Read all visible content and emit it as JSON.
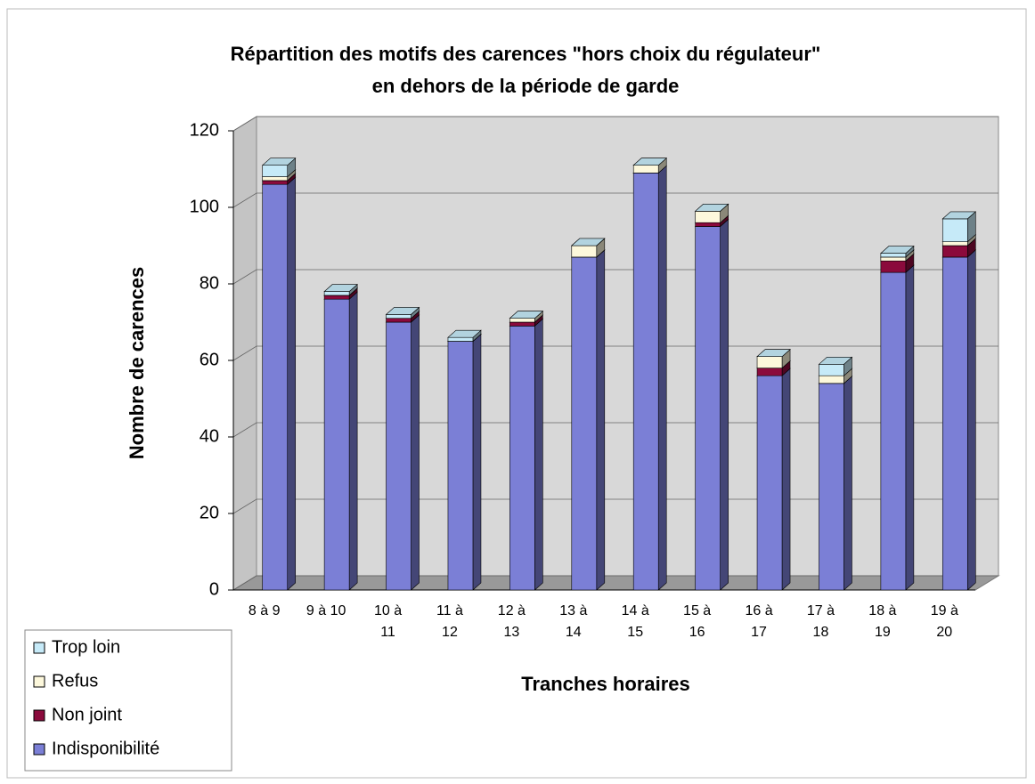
{
  "chart_data": {
    "type": "bar3d_stacked",
    "title": "Répartition des motifs des carences \"hors choix du régulateur\"",
    "subtitle": "en dehors de la période de garde",
    "y_label": "Nombre de carences",
    "x_label": "Tranches horaires",
    "categories": [
      "8 à 9",
      "9 à 10",
      "10 à\n11",
      "11 à\n12",
      "12 à\n13",
      "13 à\n14",
      "14 à\n15",
      "15 à\n16",
      "16 à\n17",
      "17 à\n18",
      "18 à\n19",
      "19 à\n20"
    ],
    "series": [
      {
        "name": "Indisponibilité",
        "color": "#7b7fd6",
        "values": [
          106,
          76,
          70,
          65,
          69,
          87,
          109,
          95,
          56,
          54,
          83,
          87
        ]
      },
      {
        "name": "Non joint",
        "color": "#8b0a3c",
        "values": [
          1,
          1,
          1,
          0,
          1,
          0,
          0,
          1,
          2,
          0,
          3,
          3
        ]
      },
      {
        "name": "Refus",
        "color": "#fdf8dc",
        "values": [
          1,
          0,
          0,
          0,
          1,
          3,
          2,
          3,
          3,
          2,
          1,
          1
        ]
      },
      {
        "name": "Trop loin",
        "color": "#c6eaf8",
        "values": [
          3,
          1,
          1,
          1,
          0,
          0,
          0,
          0,
          0,
          3,
          1,
          6
        ]
      }
    ],
    "ylim": [
      0,
      120
    ],
    "yticks": [
      0,
      20,
      40,
      60,
      80,
      100,
      120
    ],
    "grid": true,
    "legend": "bottom-left"
  }
}
